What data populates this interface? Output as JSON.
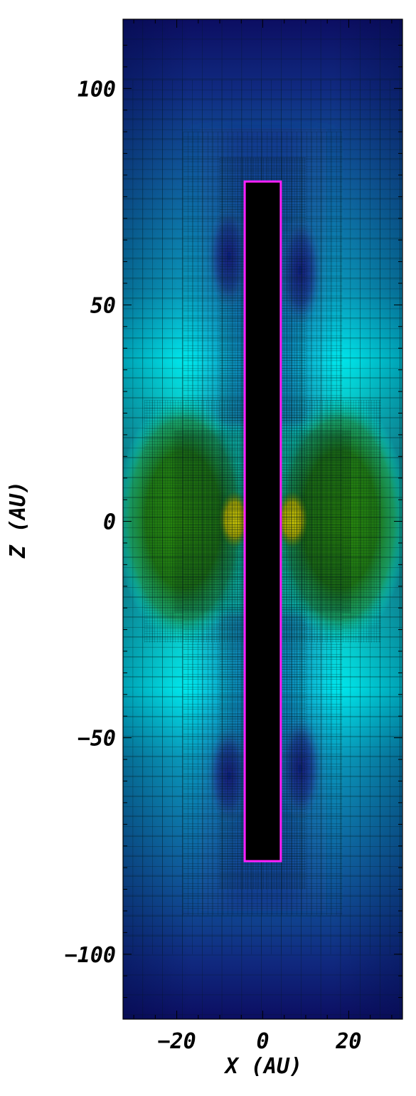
{
  "chart_data": {
    "type": "heatmap",
    "xlabel": "X  (AU)",
    "ylabel": "Z  (AU)",
    "xlim": [
      -32.5,
      32.5
    ],
    "ylim": [
      -115,
      116
    ],
    "x_ticks": [
      -20,
      0,
      20
    ],
    "y_ticks": [
      -100,
      -50,
      0,
      50,
      100
    ],
    "x_tick_labels": [
      "−20",
      "0",
      "20"
    ],
    "y_tick_labels": [
      "−100",
      "−50",
      "0",
      "50",
      "100"
    ],
    "colormap": [
      "#0a0a5a",
      "#10408a",
      "#0a8ab0",
      "#00ffff",
      "#1aa07a",
      "#1e7a10",
      "#f0e000"
    ],
    "masked_region": {
      "x": [
        -4.2,
        4.2
      ],
      "z": [
        -78.5,
        78.5
      ],
      "fill": "#000000",
      "outline": "#ff20ff"
    },
    "amr_levels": [
      {
        "cell_size": 4.6,
        "x": [
          -32.5,
          32.5
        ],
        "z": [
          -115,
          116
        ]
      },
      {
        "cell_size": 2.3,
        "x": [
          -32.5,
          32.5
        ],
        "z": [
          -100,
          102
        ]
      },
      {
        "cell_size": 1.15,
        "x": [
          -18.5,
          18.5
        ],
        "z": [
          -91,
          90
        ]
      },
      {
        "cell_size": 0.6,
        "x": [
          -10,
          10
        ],
        "z": [
          -85,
          84
        ]
      },
      {
        "cell_size": 0.6,
        "x": [
          -27.5,
          27.5
        ],
        "z": [
          -28,
          28
        ]
      },
      {
        "cell_size": 0.3,
        "x": [
          -20.5,
          20.5
        ],
        "z": [
          -21,
          21
        ]
      }
    ]
  }
}
